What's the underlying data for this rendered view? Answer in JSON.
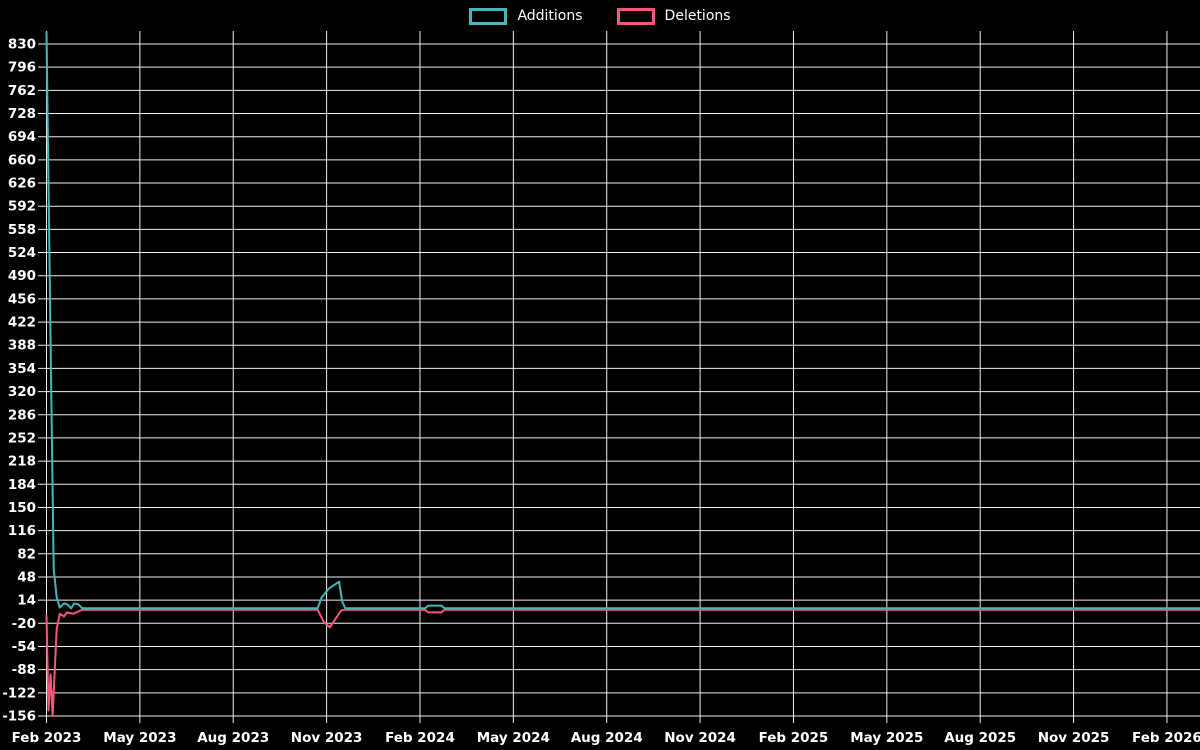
{
  "legend": {
    "items": [
      {
        "label": "Additions",
        "color": "#45b6b9"
      },
      {
        "label": "Deletions",
        "color": "#f8577b"
      }
    ]
  },
  "chart_data": {
    "type": "line",
    "title": "",
    "x_axis_label": "",
    "y_axis_label": "",
    "x_unit": "days since Feb 2023",
    "x_tick_labels": [
      "Feb 2023",
      "May 2023",
      "Aug 2023",
      "Nov 2023",
      "Feb 2024",
      "May 2024",
      "Aug 2024",
      "Nov 2024",
      "Feb 2025",
      "May 2025",
      "Aug 2025",
      "Nov 2025",
      "Feb 2026"
    ],
    "y_ticks": [
      830,
      796,
      762,
      728,
      694,
      660,
      626,
      592,
      558,
      524,
      490,
      456,
      422,
      388,
      354,
      320,
      286,
      252,
      218,
      184,
      150,
      116,
      82,
      48,
      14,
      -20,
      -54,
      -88,
      -122,
      -156
    ],
    "y_min": -156,
    "y_max": 830,
    "y_step": 34,
    "ylim": [
      -156,
      850
    ],
    "grid": true,
    "legend_position": "top-center",
    "background_color": "#000000",
    "grid_color": "#f0f0f0",
    "text_color": "#ffffff",
    "series": [
      {
        "name": "Deletions",
        "color": "#f8577b",
        "points": [
          [
            0,
            -8
          ],
          [
            2,
            -148
          ],
          [
            4,
            -95
          ],
          [
            6,
            -156
          ],
          [
            10,
            -28
          ],
          [
            13,
            -6
          ],
          [
            17,
            -10
          ],
          [
            20,
            -4
          ],
          [
            26,
            -6
          ],
          [
            35,
            0
          ],
          [
            265,
            0
          ],
          [
            271,
            -18
          ],
          [
            277,
            -26
          ],
          [
            283,
            -12
          ],
          [
            288,
            -1
          ],
          [
            292,
            0
          ],
          [
            370,
            0
          ],
          [
            373,
            -4
          ],
          [
            386,
            -4
          ],
          [
            389,
            0
          ],
          [
            1128,
            0
          ]
        ]
      },
      {
        "name": "Additions",
        "color": "#45b6b9",
        "points": [
          [
            0,
            848
          ],
          [
            4,
            390
          ],
          [
            7,
            60
          ],
          [
            10,
            18
          ],
          [
            13,
            3
          ],
          [
            17,
            9
          ],
          [
            20,
            8
          ],
          [
            24,
            2
          ],
          [
            27,
            9
          ],
          [
            31,
            8
          ],
          [
            35,
            2
          ],
          [
            265,
            2
          ],
          [
            269,
            18
          ],
          [
            276,
            31
          ],
          [
            286,
            41
          ],
          [
            289,
            12
          ],
          [
            292,
            2
          ],
          [
            370,
            2
          ],
          [
            373,
            6
          ],
          [
            386,
            6
          ],
          [
            389,
            2
          ],
          [
            1128,
            2
          ]
        ]
      }
    ]
  }
}
